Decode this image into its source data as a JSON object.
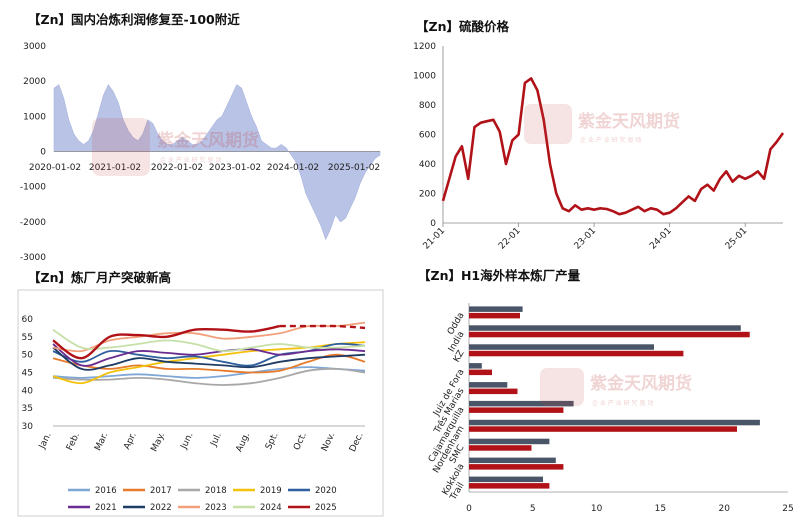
{
  "watermark": {
    "text": "紫金天风期货",
    "sub": "企 业 产 业 研 究 驱 动"
  },
  "chart_data": [
    {
      "id": "profit",
      "type": "area",
      "title": "【Zn】国内冶炼利润修复至-100附近",
      "ylim": [
        -3000,
        3000
      ],
      "yticks": [
        "3000",
        "2000",
        "1000",
        "0",
        "-1000",
        "-2000",
        "-3000"
      ],
      "xticks": [
        "2020-01-02",
        "2021-01-02",
        "2022-01-02",
        "2023-01-02",
        "2024-01-02",
        "2025-01-02"
      ],
      "color": "#b9c3e6",
      "x": [
        "2020-01",
        "2020-02",
        "2020-03",
        "2020-04",
        "2020-05",
        "2020-06",
        "2020-07",
        "2020-08",
        "2020-09",
        "2020-10",
        "2020-11",
        "2020-12",
        "2021-01",
        "2021-02",
        "2021-03",
        "2021-04",
        "2021-05",
        "2021-06",
        "2021-07",
        "2021-08",
        "2021-09",
        "2021-10",
        "2021-11",
        "2021-12",
        "2022-01",
        "2022-02",
        "2022-03",
        "2022-04",
        "2022-05",
        "2022-06",
        "2022-07",
        "2022-08",
        "2022-09",
        "2022-10",
        "2022-11",
        "2022-12",
        "2023-01",
        "2023-02",
        "2023-03",
        "2023-04",
        "2023-05",
        "2023-06",
        "2023-07",
        "2023-08",
        "2023-09",
        "2023-10",
        "2023-11",
        "2023-12",
        "2024-01",
        "2024-02",
        "2024-03",
        "2024-04",
        "2024-05",
        "2024-06",
        "2024-07",
        "2024-08",
        "2024-09",
        "2024-10",
        "2024-11",
        "2024-12",
        "2025-01",
        "2025-02",
        "2025-03",
        "2025-04",
        "2025-05",
        "2025-06",
        "2025-07"
      ],
      "values": [
        1800,
        1900,
        1500,
        900,
        500,
        300,
        200,
        300,
        600,
        1100,
        1600,
        1900,
        1700,
        1400,
        900,
        600,
        400,
        300,
        500,
        900,
        800,
        500,
        300,
        200,
        200,
        300,
        400,
        300,
        200,
        200,
        300,
        500,
        700,
        900,
        1000,
        1300,
        1600,
        1900,
        1800,
        1400,
        1000,
        700,
        300,
        200,
        100,
        100,
        200,
        100,
        -100,
        -300,
        -700,
        -1200,
        -1500,
        -1800,
        -2100,
        -2500,
        -2200,
        -1800,
        -2000,
        -1900,
        -1600,
        -1300,
        -900,
        -600,
        -400,
        -200,
        -100
      ]
    },
    {
      "id": "acid",
      "type": "line",
      "title": "【Zn】硫酸价格",
      "ylim": [
        0,
        1200
      ],
      "yticks": [
        "1200",
        "1000",
        "800",
        "600",
        "400",
        "200",
        "0"
      ],
      "xticks": [
        "21-01",
        "22-01",
        "23-01",
        "24-01",
        "25-01"
      ],
      "color": "#b11218",
      "x": [
        "2021-01",
        "2021-02",
        "2021-03",
        "2021-04",
        "2021-05",
        "2021-06",
        "2021-07",
        "2021-08",
        "2021-09",
        "2021-10",
        "2021-11",
        "2021-12",
        "2022-01",
        "2022-02",
        "2022-03",
        "2022-04",
        "2022-05",
        "2022-06",
        "2022-07",
        "2022-08",
        "2022-09",
        "2022-10",
        "2022-11",
        "2022-12",
        "2023-01",
        "2023-02",
        "2023-03",
        "2023-04",
        "2023-05",
        "2023-06",
        "2023-07",
        "2023-08",
        "2023-09",
        "2023-10",
        "2023-11",
        "2023-12",
        "2024-01",
        "2024-02",
        "2024-03",
        "2024-04",
        "2024-05",
        "2024-06",
        "2024-07",
        "2024-08",
        "2024-09",
        "2024-10",
        "2024-11",
        "2024-12",
        "2025-01",
        "2025-02",
        "2025-03",
        "2025-04",
        "2025-05",
        "2025-06",
        "2025-07"
      ],
      "values": [
        150,
        300,
        450,
        520,
        300,
        650,
        680,
        690,
        700,
        620,
        400,
        560,
        600,
        950,
        980,
        900,
        700,
        400,
        200,
        100,
        80,
        120,
        90,
        100,
        90,
        100,
        95,
        80,
        60,
        70,
        90,
        110,
        80,
        100,
        90,
        60,
        70,
        100,
        140,
        180,
        150,
        230,
        260,
        220,
        300,
        350,
        280,
        320,
        300,
        320,
        350,
        300,
        500,
        550,
        610
      ]
    },
    {
      "id": "monthly",
      "type": "line",
      "title": "【Zn】炼厂月产突破新高",
      "ylim": [
        30,
        60
      ],
      "yticks": [
        "60",
        "55",
        "50",
        "45",
        "40",
        "35",
        "30"
      ],
      "categories": [
        "Jan.",
        "Feb.",
        "Mar.",
        "Apr.",
        "May.",
        "Jun.",
        "Jul.",
        "Aug.",
        "Spt.",
        "Oct.",
        "Nov.",
        "Dec."
      ],
      "series": [
        {
          "name": "2016",
          "color": "#7fa7d6",
          "values": [
            44,
            43.5,
            44,
            44.5,
            44,
            43.5,
            44,
            45,
            46,
            46.5,
            46,
            45.5
          ]
        },
        {
          "name": "2017",
          "color": "#e87b2b",
          "values": [
            49,
            47,
            46,
            47,
            46,
            46,
            45.5,
            45,
            45.5,
            48,
            50,
            48
          ]
        },
        {
          "name": "2018",
          "color": "#a8a8a8",
          "values": [
            43.5,
            43,
            43,
            43.5,
            43,
            42,
            41.5,
            42,
            43.5,
            45.5,
            46,
            45
          ]
        },
        {
          "name": "2019",
          "color": "#f4c20d",
          "values": [
            44,
            42,
            45,
            46.5,
            48,
            49,
            50,
            51,
            51.5,
            52,
            53,
            53.5
          ]
        },
        {
          "name": "2020",
          "color": "#2f5f9e",
          "values": [
            51,
            48,
            51,
            50,
            49,
            49.5,
            48,
            47,
            50,
            51,
            53,
            52.5
          ]
        },
        {
          "name": "2021",
          "color": "#6a2c91",
          "values": [
            53,
            47,
            49,
            51,
            50.5,
            50,
            51,
            51.5,
            50,
            51,
            51.5,
            51
          ]
        },
        {
          "name": "2022",
          "color": "#1f3c64",
          "values": [
            52,
            46,
            47,
            49,
            48,
            47.5,
            47,
            46.5,
            48,
            49,
            49.5,
            50
          ]
        },
        {
          "name": "2023",
          "color": "#f2a07b",
          "values": [
            52,
            51,
            54,
            55,
            56,
            56,
            54.5,
            55,
            56,
            58,
            58,
            59
          ]
        },
        {
          "name": "2024",
          "color": "#c6e0a8",
          "values": [
            57,
            52,
            52,
            53,
            54,
            53,
            51,
            52,
            53,
            52,
            52,
            52.5
          ]
        },
        {
          "name": "2025",
          "color": "#b11218",
          "values": [
            54,
            49,
            55,
            55.5,
            55,
            57,
            57,
            56.5,
            58,
            58,
            58,
            57.5
          ],
          "dashed_from": 8
        }
      ]
    },
    {
      "id": "overseas",
      "type": "bar",
      "title": "【Zn】H1海外样本炼厂产量",
      "xlim": [
        0,
        25
      ],
      "xticks": [
        "0",
        "5",
        "10",
        "15",
        "20",
        "25"
      ],
      "categories": [
        "Odda",
        "India",
        "KZ",
        "Juiz de Fora",
        "Três Marias",
        "Cajamarquilla",
        "Nordenham",
        "SMC",
        "Kokkola",
        "Trail"
      ],
      "series": [
        {
          "color": "#4a5568",
          "values": [
            4.2,
            21.3,
            14.5,
            1.0,
            3.0,
            8.2,
            22.8,
            6.3,
            6.8,
            5.8
          ]
        },
        {
          "color": "#b11218",
          "values": [
            4.0,
            22.0,
            16.8,
            1.8,
            3.8,
            7.4,
            21.0,
            4.9,
            7.4,
            6.3
          ]
        }
      ]
    }
  ]
}
